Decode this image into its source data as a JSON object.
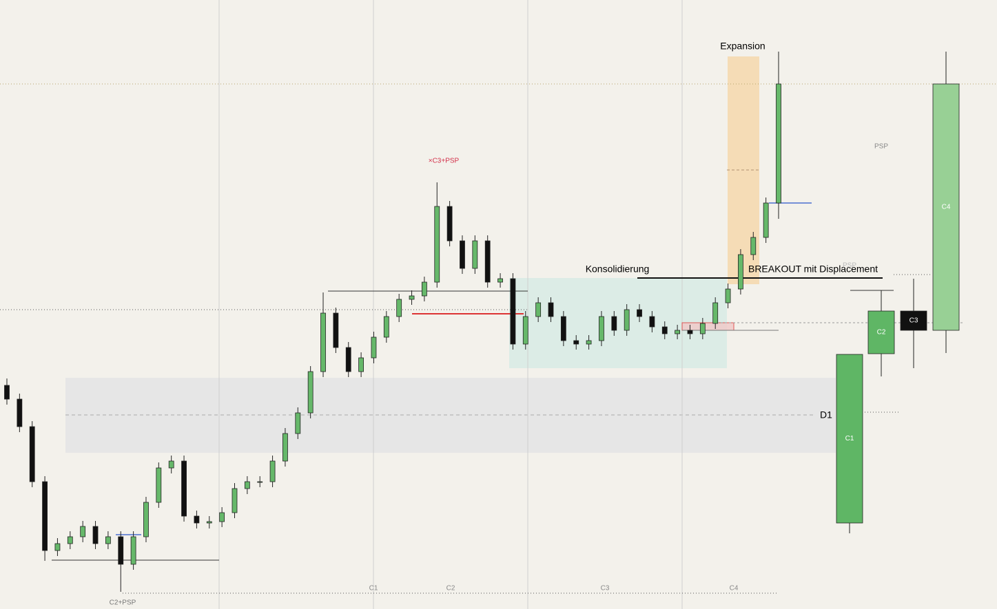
{
  "chart_data": {
    "type": "candlestick",
    "ylim": [
      0,
      885
    ],
    "bull_color": "#66b86a",
    "bear_color": "#111111",
    "ohlc": [
      [
        325,
        335,
        297,
        305
      ],
      [
        305,
        313,
        257,
        265
      ],
      [
        265,
        273,
        177,
        185
      ],
      [
        185,
        193,
        70,
        85
      ],
      [
        85,
        103,
        77,
        95
      ],
      [
        95,
        113,
        87,
        105
      ],
      [
        105,
        128,
        97,
        120
      ],
      [
        120,
        128,
        87,
        95
      ],
      [
        95,
        113,
        87,
        105
      ],
      [
        105,
        113,
        25,
        65
      ],
      [
        65,
        113,
        57,
        105
      ],
      [
        105,
        163,
        97,
        155
      ],
      [
        155,
        213,
        147,
        205
      ],
      [
        205,
        223,
        197,
        215
      ],
      [
        215,
        223,
        127,
        135
      ],
      [
        135,
        143,
        117,
        125
      ],
      [
        125,
        135,
        117,
        127
      ],
      [
        127,
        148,
        119,
        140
      ],
      [
        140,
        183,
        132,
        175
      ],
      [
        175,
        193,
        167,
        185
      ],
      [
        185,
        193,
        177,
        185
      ],
      [
        185,
        223,
        177,
        215
      ],
      [
        215,
        263,
        207,
        255
      ],
      [
        255,
        293,
        247,
        285
      ],
      [
        285,
        353,
        277,
        345
      ],
      [
        345,
        460,
        337,
        430
      ],
      [
        430,
        438,
        372,
        380
      ],
      [
        380,
        388,
        337,
        345
      ],
      [
        345,
        373,
        337,
        365
      ],
      [
        365,
        403,
        357,
        395
      ],
      [
        395,
        433,
        387,
        425
      ],
      [
        425,
        458,
        417,
        450
      ],
      [
        450,
        463,
        442,
        455
      ],
      [
        455,
        483,
        447,
        475
      ],
      [
        475,
        620,
        467,
        585
      ],
      [
        585,
        593,
        527,
        535
      ],
      [
        535,
        543,
        487,
        495
      ],
      [
        495,
        543,
        487,
        535
      ],
      [
        535,
        543,
        467,
        475
      ],
      [
        475,
        488,
        467,
        480
      ],
      [
        480,
        488,
        377,
        385
      ],
      [
        385,
        433,
        377,
        425
      ],
      [
        425,
        453,
        417,
        445
      ],
      [
        445,
        453,
        417,
        425
      ],
      [
        425,
        433,
        382,
        390
      ],
      [
        390,
        398,
        377,
        385
      ],
      [
        385,
        398,
        377,
        390
      ],
      [
        390,
        433,
        382,
        425
      ],
      [
        425,
        433,
        397,
        405
      ],
      [
        405,
        443,
        397,
        435
      ],
      [
        435,
        443,
        417,
        425
      ],
      [
        425,
        433,
        402,
        410
      ],
      [
        410,
        418,
        392,
        400
      ],
      [
        400,
        413,
        392,
        405
      ],
      [
        405,
        413,
        392,
        400
      ],
      [
        400,
        423,
        392,
        415
      ],
      [
        415,
        453,
        407,
        445
      ],
      [
        445,
        473,
        437,
        465
      ],
      [
        465,
        523,
        457,
        515
      ],
      [
        515,
        548,
        507,
        540
      ],
      [
        540,
        598,
        532,
        590
      ],
      [
        590,
        810,
        567,
        763
      ]
    ],
    "htf_labels": [
      "C1",
      "C2",
      "C3",
      "C4"
    ],
    "htf_ohlc": [
      [
        125,
        370,
        110,
        370
      ],
      [
        371,
        463,
        338,
        433
      ],
      [
        433,
        480,
        350,
        405
      ],
      [
        405,
        810,
        372,
        763
      ]
    ],
    "htf_colors": [
      "#5fb665",
      "#5fb665",
      "#111111",
      "#98d095"
    ],
    "annotations": {
      "expansion": "Expansion",
      "c3_psp": "×C3+PSP",
      "konsolidierung": "Konsolidierung",
      "breakout": "BREAKOUT mit Displacement",
      "d1": "D1",
      "psp": "PSP",
      "psp2": "PSP",
      "c2_psp": "C2+PSP"
    },
    "session_labels": [
      "C1",
      "C2",
      "C3",
      "C4"
    ]
  }
}
